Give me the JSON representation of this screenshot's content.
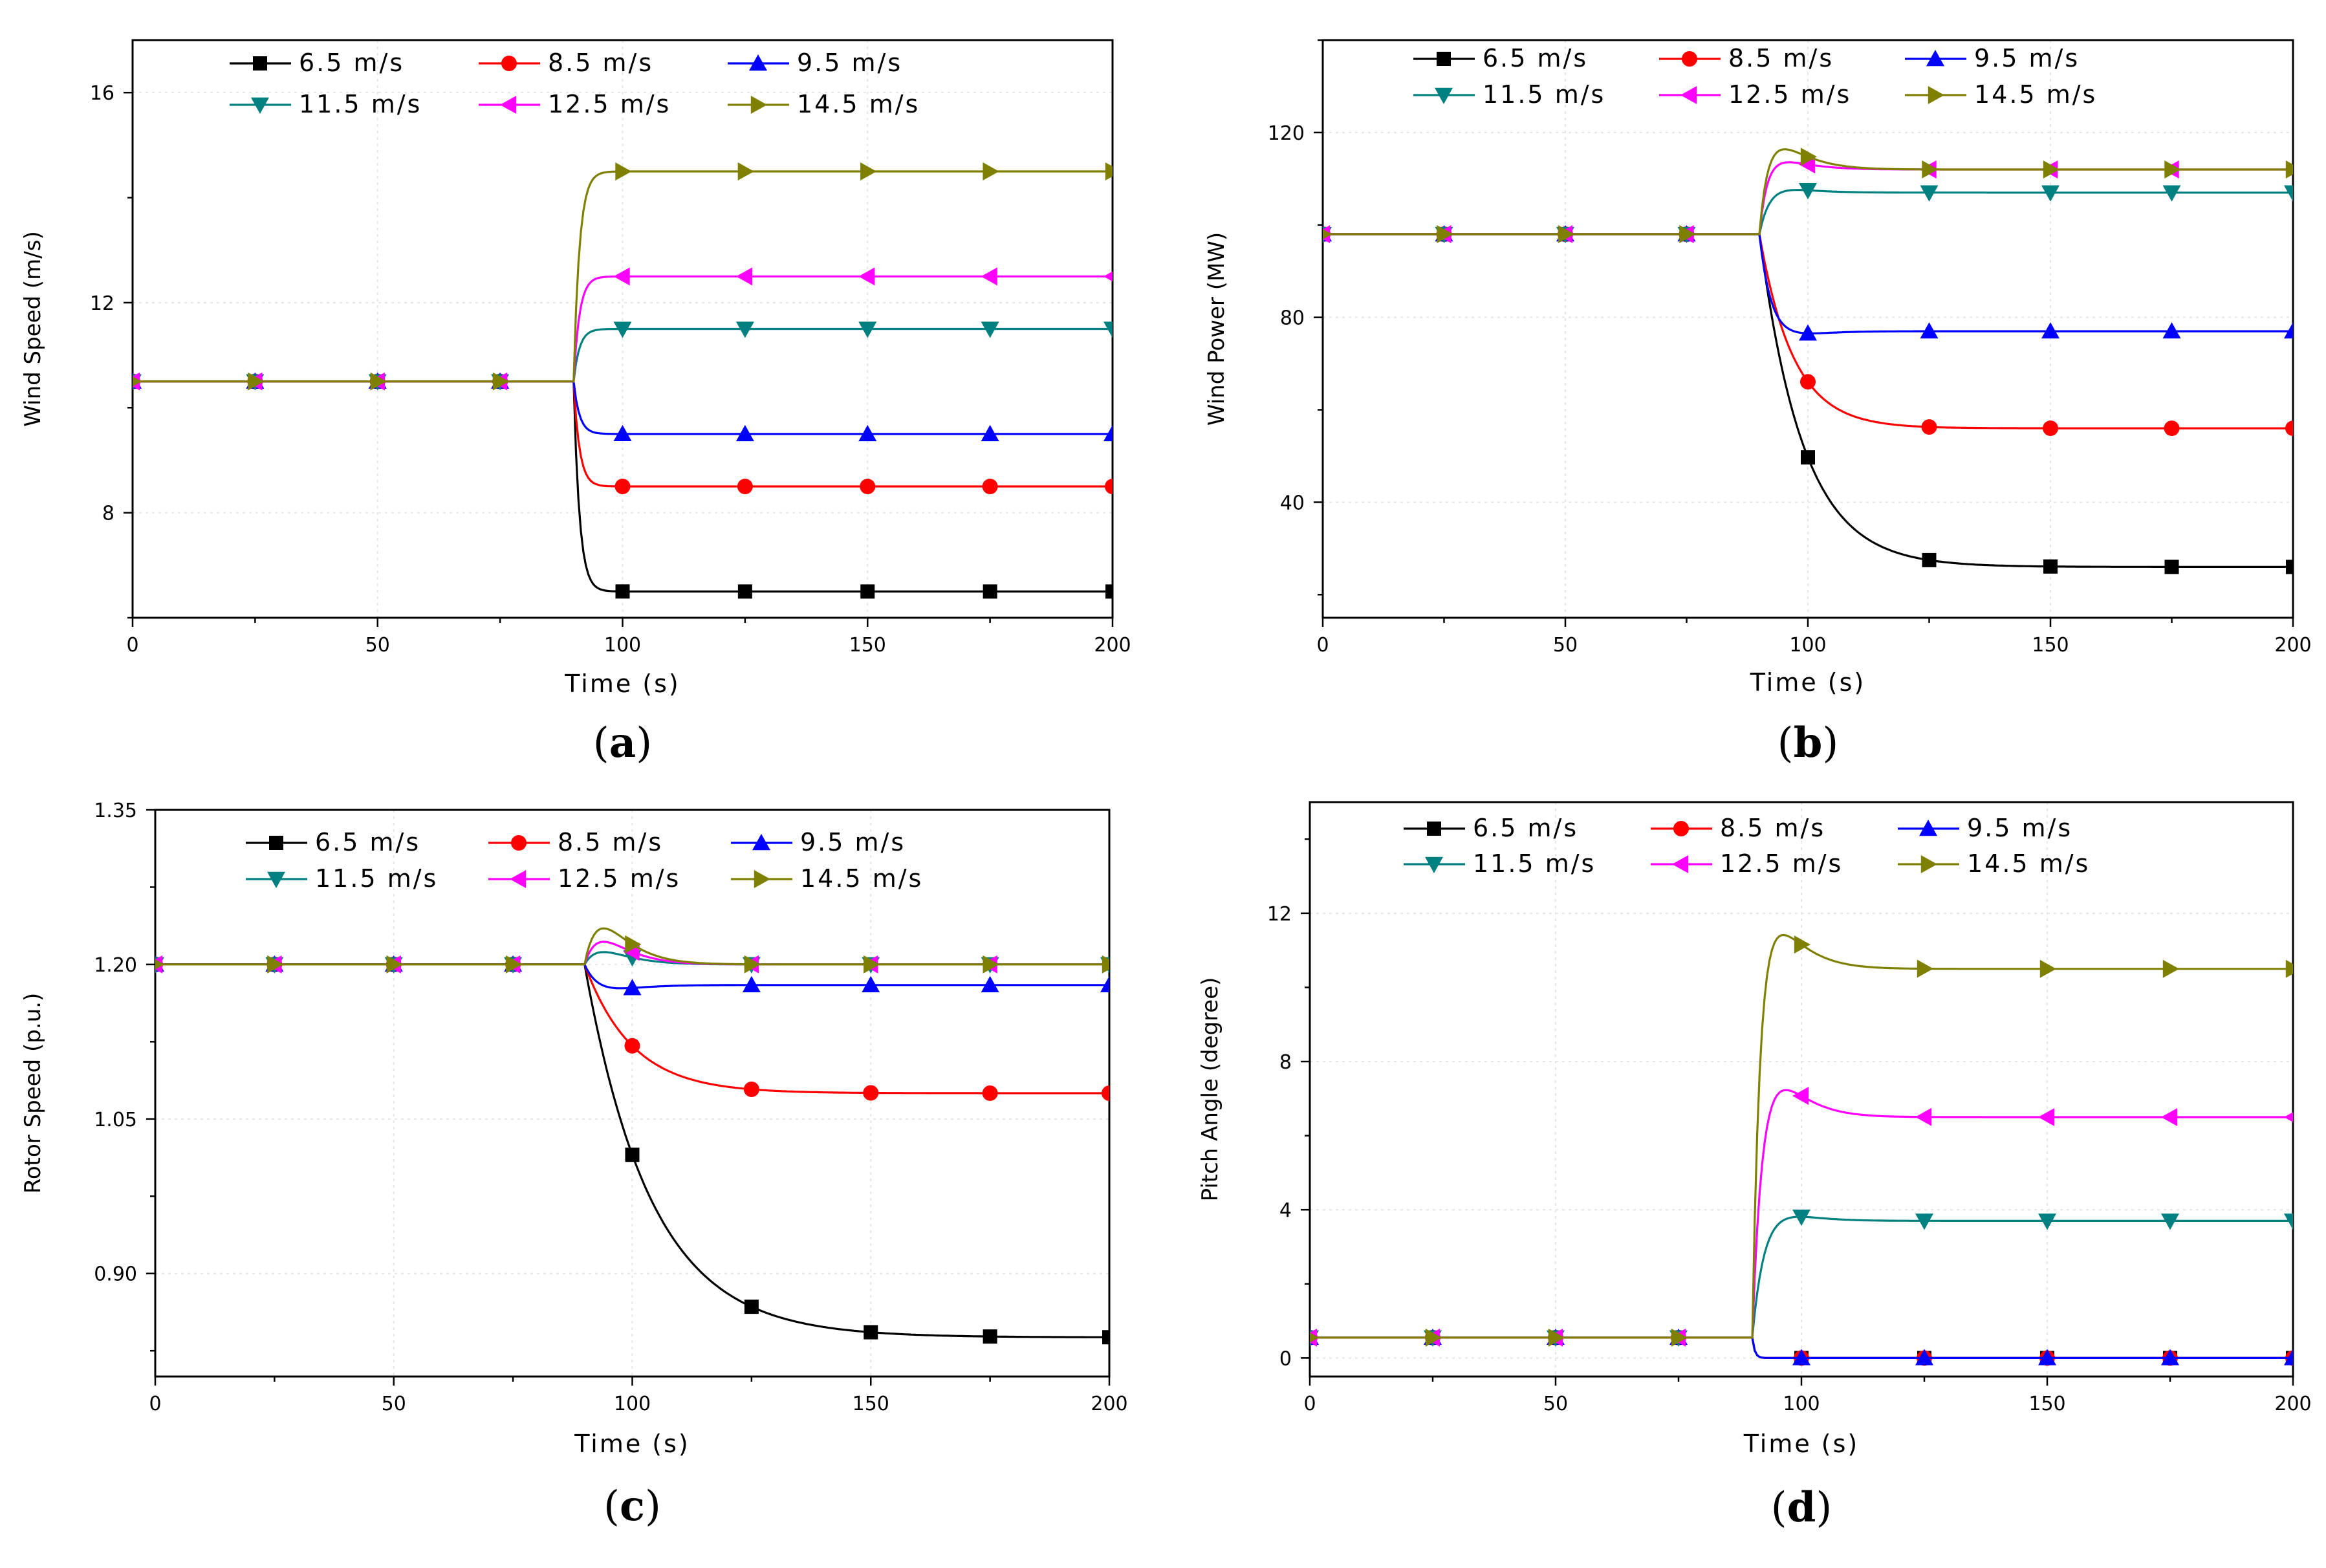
{
  "colors": {
    "6.5 m/s": "#000000",
    "8.5 m/s": "#ff0000",
    "9.5 m/s": "#0000ff",
    "11.5 m/s": "#008080",
    "12.5 m/s": "#ff00ff",
    "14.5 m/s": "#808000"
  },
  "markers": {
    "6.5 m/s": "square",
    "8.5 m/s": "circle",
    "9.5 m/s": "triangle-up",
    "11.5 m/s": "triangle-down",
    "12.5 m/s": "triangle-left",
    "14.5 m/s": "triangle-right"
  },
  "chart_data": [
    {
      "panel": "(a)",
      "panel_letter": "a",
      "type": "line",
      "xlabel": "Time (s)",
      "ylabel": "Wind Speed (m/s)",
      "xlim": [
        0,
        200
      ],
      "ylim": [
        6,
        17
      ],
      "xticks": [
        0,
        50,
        100,
        150,
        200
      ],
      "yticks": [
        8,
        12,
        16
      ],
      "ytick_labels": [
        "8",
        "12",
        "16"
      ],
      "legend": [
        "6.5 m/s",
        "8.5 m/s",
        "9.5 m/s",
        "11.5 m/s",
        "12.5 m/s",
        "14.5 m/s"
      ],
      "series": [
        {
          "name": "6.5 m/s",
          "initial": 10.5,
          "final": 6.5,
          "overshoot": 0,
          "tau": 1.2
        },
        {
          "name": "8.5 m/s",
          "initial": 10.5,
          "final": 8.5,
          "overshoot": 0,
          "tau": 1.2
        },
        {
          "name": "9.5 m/s",
          "initial": 10.5,
          "final": 9.5,
          "overshoot": 0,
          "tau": 1.2
        },
        {
          "name": "11.5 m/s",
          "initial": 10.5,
          "final": 11.5,
          "overshoot": 0,
          "tau": 1.2
        },
        {
          "name": "12.5 m/s",
          "initial": 10.5,
          "final": 12.5,
          "overshoot": 0,
          "tau": 1.2
        },
        {
          "name": "14.5 m/s",
          "initial": 10.5,
          "final": 14.5,
          "overshoot": 0,
          "tau": 1.2
        }
      ]
    },
    {
      "panel": "(b)",
      "panel_letter": "b",
      "type": "line",
      "xlabel": "Time (s)",
      "ylabel": "Wind Power (MW)",
      "xlim": [
        0,
        200
      ],
      "ylim": [
        15,
        140
      ],
      "xticks": [
        0,
        50,
        100,
        150,
        200
      ],
      "yticks": [
        40,
        80,
        120
      ],
      "ytick_labels": [
        "40",
        "80",
        "120"
      ],
      "legend": [
        "6.5 m/s",
        "8.5 m/s",
        "9.5 m/s",
        "11.5 m/s",
        "12.5 m/s",
        "14.5 m/s"
      ],
      "series": [
        {
          "name": "6.5 m/s",
          "initial": 98,
          "final": 26,
          "overshoot": 0,
          "tau": 9
        },
        {
          "name": "8.5 m/s",
          "initial": 98,
          "final": 56,
          "overshoot": 0,
          "tau": 7
        },
        {
          "name": "9.5 m/s",
          "initial": 98,
          "final": 77,
          "overshoot": -1.5,
          "tau": 2.5
        },
        {
          "name": "11.5 m/s",
          "initial": 98,
          "final": 107,
          "overshoot": 1,
          "tau": 2
        },
        {
          "name": "12.5 m/s",
          "initial": 98,
          "final": 112,
          "overshoot": 2,
          "tau": 1.5
        },
        {
          "name": "14.5 m/s",
          "initial": 98,
          "final": 112,
          "overshoot": 5,
          "tau": 1.5
        }
      ]
    },
    {
      "panel": "(c)",
      "panel_letter": "c",
      "type": "line",
      "xlabel": "Time (s)",
      "ylabel": "Rotor Speed (p.u.)",
      "xlim": [
        0,
        200
      ],
      "ylim": [
        0.8,
        1.35
      ],
      "xticks": [
        0,
        50,
        100,
        150,
        200
      ],
      "yticks": [
        0.9,
        1.05,
        1.2,
        1.35
      ],
      "ytick_labels": [
        "0.90",
        "1.05",
        "1.20",
        "1.35"
      ],
      "legend": [
        "6.5 m/s",
        "8.5 m/s",
        "9.5 m/s",
        "11.5 m/s",
        "12.5 m/s",
        "14.5 m/s"
      ],
      "series": [
        {
          "name": "6.5 m/s",
          "initial": 1.2,
          "final": 0.838,
          "overshoot": 0,
          "tau": 14
        },
        {
          "name": "8.5 m/s",
          "initial": 1.2,
          "final": 1.075,
          "overshoot": 0,
          "tau": 10
        },
        {
          "name": "9.5 m/s",
          "initial": 1.2,
          "final": 1.18,
          "overshoot": -0.008,
          "tau": 4
        },
        {
          "name": "11.5 m/s",
          "initial": 1.2,
          "final": 1.2,
          "overshoot": 0.012,
          "tau": 3
        },
        {
          "name": "12.5 m/s",
          "initial": 1.2,
          "final": 1.2,
          "overshoot": 0.022,
          "tau": 3
        },
        {
          "name": "14.5 m/s",
          "initial": 1.2,
          "final": 1.2,
          "overshoot": 0.035,
          "tau": 3
        }
      ]
    },
    {
      "panel": "(d)",
      "panel_letter": "d",
      "type": "line",
      "xlabel": "Time (s)",
      "ylabel": "Pitch Angle (degree)",
      "xlim": [
        0,
        200
      ],
      "ylim": [
        -0.5,
        15
      ],
      "xticks": [
        0,
        50,
        100,
        150,
        200
      ],
      "yticks": [
        0,
        4,
        8,
        12
      ],
      "ytick_labels": [
        "0",
        "4",
        "8",
        "12"
      ],
      "legend": [
        "6.5 m/s",
        "8.5 m/s",
        "9.5 m/s",
        "11.5 m/s",
        "12.5 m/s",
        "14.5 m/s"
      ],
      "series": [
        {
          "name": "6.5 m/s",
          "initial": 0.55,
          "final": 0,
          "overshoot": 0,
          "tau": 0.5
        },
        {
          "name": "8.5 m/s",
          "initial": 0.55,
          "final": 0,
          "overshoot": 0,
          "tau": 0.5
        },
        {
          "name": "9.5 m/s",
          "initial": 0.55,
          "final": 0,
          "overshoot": 0,
          "tau": 0.5
        },
        {
          "name": "11.5 m/s",
          "initial": 0.55,
          "final": 3.7,
          "overshoot": 0.3,
          "tau": 2.5
        },
        {
          "name": "12.5 m/s",
          "initial": 0.55,
          "final": 6.5,
          "overshoot": 1.1,
          "tau": 2
        },
        {
          "name": "14.5 m/s",
          "initial": 0.55,
          "final": 10.5,
          "overshoot": 1.2,
          "tau": 1.5
        }
      ]
    }
  ]
}
